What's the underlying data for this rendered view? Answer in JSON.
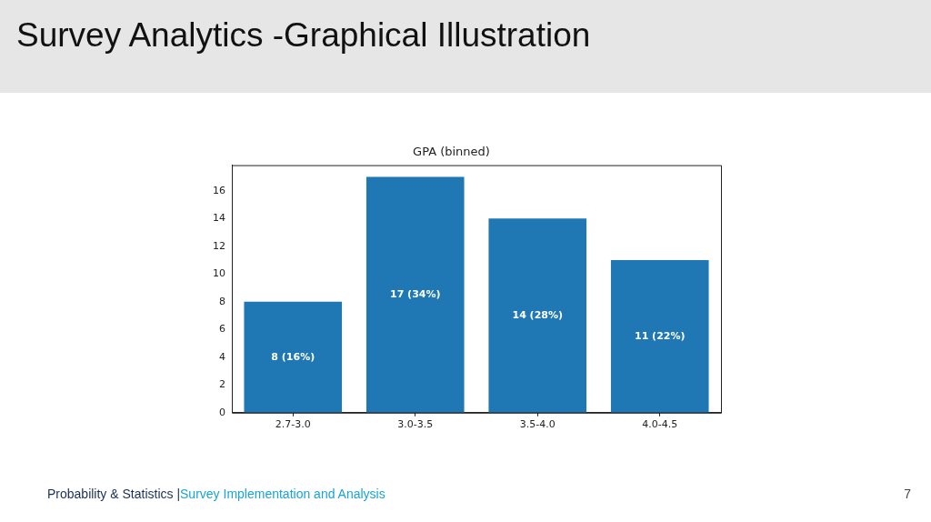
{
  "chart_data": {
    "type": "bar",
    "title": "Survey Analytics -Graphical Illustration",
    "subtitle": "GPA (binned)",
    "categories": [
      "2.7-3.0",
      "3.0-3.5",
      "3.5-4.0",
      "4.0-4.5"
    ],
    "values": [
      8,
      17,
      14,
      11
    ],
    "color": "#1f77b4",
    "value_labels": [
      "8 (16%)",
      "17 (34%)",
      "14 (28%)",
      "11 (22%)"
    ],
    "ylim": [
      0,
      17.85
    ],
    "yticks": [
      0,
      2,
      4,
      6,
      8,
      10,
      12,
      14,
      16
    ],
    "grid": false,
    "legend": false,
    "annotations": [
      "Probability & Statistics |",
      "Survey Implementation and Analysis",
      "7"
    ]
  }
}
